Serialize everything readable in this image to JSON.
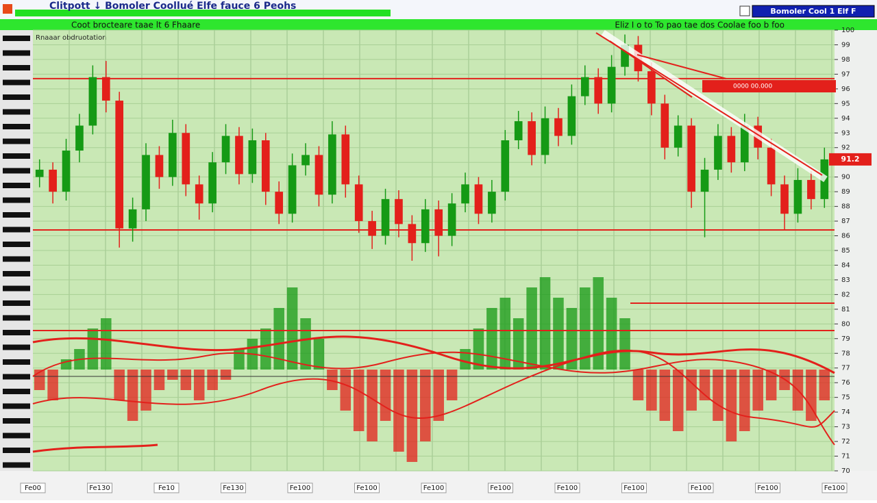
{
  "window": {
    "title": "Clitpott ↓ Bomoler Coollué Elfe fauce 6 Peohs",
    "header_right": "Bomoler Cool 1 Elf F",
    "toolbar_left": "Coot brocteare taae lt 6 Fhaare",
    "toolbar_right": "Eliz I o to To pao tae dos Coolae foo b foo",
    "panel_label": "Rnaaar obdruotation",
    "annotation": "0000 00.000"
  },
  "chart_data": {
    "type": "candlestick",
    "up_color": "#159a15",
    "down_color": "#e3201b",
    "x_labels": [
      "Fe00",
      "Fe130",
      "Fe10",
      "Fe130",
      "Fe100",
      "Fe100",
      "Fe100",
      "Fe100",
      "Fe100",
      "Fe100",
      "Fe100",
      "Fe100",
      "Fe100"
    ],
    "opens": [
      90.0,
      90.5,
      89.0,
      91.8,
      93.5,
      96.8,
      95.2,
      86.5,
      87.8,
      91.5,
      90.0,
      93.0,
      89.5,
      88.2,
      91.0,
      92.8,
      90.2,
      92.5,
      89.0,
      87.5,
      90.8,
      91.5,
      88.8,
      92.9,
      89.5,
      87.0,
      86.0,
      88.5,
      86.8,
      85.5,
      87.8,
      86.0,
      88.2,
      89.5,
      87.5,
      89.0,
      92.5,
      93.8,
      91.5,
      94.0,
      92.8,
      95.5,
      96.8,
      95.0,
      97.5,
      99.0,
      97.2,
      95.0,
      92.0,
      93.5,
      89.0,
      90.5,
      92.8,
      91.0,
      93.5,
      92.0,
      89.5,
      87.5,
      89.8,
      88.5
    ],
    "highs": [
      91.2,
      91.0,
      92.6,
      94.3,
      97.6,
      97.9,
      95.8,
      88.6,
      92.3,
      92.1,
      93.9,
      93.6,
      90.1,
      91.7,
      93.6,
      93.4,
      93.3,
      93.0,
      89.7,
      91.6,
      92.3,
      92.1,
      93.8,
      93.5,
      90.1,
      87.7,
      89.2,
      89.1,
      87.4,
      88.5,
      88.4,
      88.9,
      90.3,
      90.0,
      89.8,
      93.2,
      94.5,
      94.4,
      94.8,
      94.7,
      96.3,
      97.6,
      97.4,
      98.3,
      99.7,
      99.6,
      97.8,
      95.6,
      94.2,
      94.0,
      91.3,
      93.6,
      93.4,
      94.3,
      94.1,
      92.6,
      90.1,
      90.6,
      90.4,
      92.0
    ],
    "lows": [
      89.3,
      88.2,
      88.4,
      91.0,
      92.9,
      94.4,
      85.2,
      85.6,
      87.0,
      89.2,
      89.4,
      88.7,
      87.1,
      87.6,
      90.2,
      89.5,
      89.6,
      88.1,
      86.8,
      86.9,
      90.1,
      88.0,
      88.2,
      88.6,
      86.2,
      85.1,
      85.4,
      85.9,
      84.3,
      84.9,
      84.6,
      85.3,
      87.6,
      86.8,
      86.9,
      88.4,
      91.9,
      90.8,
      90.9,
      92.1,
      92.2,
      94.9,
      94.3,
      94.4,
      96.9,
      96.5,
      94.2,
      91.2,
      91.4,
      87.9,
      85.9,
      89.8,
      90.3,
      90.4,
      91.2,
      88.7,
      86.4,
      86.9,
      87.8,
      87.9
    ],
    "closes": [
      90.5,
      89.0,
      91.8,
      93.5,
      96.8,
      95.2,
      86.5,
      87.8,
      91.5,
      90.0,
      93.0,
      89.5,
      88.2,
      91.0,
      92.8,
      90.2,
      92.5,
      89.0,
      87.5,
      90.8,
      91.5,
      88.8,
      92.9,
      89.5,
      87.0,
      86.0,
      88.5,
      86.8,
      85.5,
      87.8,
      86.0,
      88.2,
      89.5,
      87.5,
      89.0,
      92.5,
      93.8,
      91.5,
      94.0,
      92.8,
      95.5,
      96.8,
      95.0,
      97.5,
      99.0,
      97.2,
      95.0,
      92.0,
      93.5,
      89.0,
      90.5,
      92.8,
      91.0,
      93.5,
      92.0,
      89.5,
      87.5,
      89.8,
      88.5,
      91.2
    ],
    "levels": [
      96.7,
      86.4
    ],
    "ylim": [
      70,
      100
    ],
    "yticks": [
      70,
      71,
      72,
      73,
      74,
      75,
      76,
      77,
      78,
      79,
      80,
      81,
      82,
      83,
      84,
      85,
      86,
      87,
      88,
      89,
      90,
      91,
      92,
      93,
      94,
      95,
      96,
      97,
      98,
      99,
      100
    ],
    "indicator": {
      "values": [
        -2,
        -3,
        1,
        2,
        4,
        5,
        -3,
        -5,
        -4,
        -2,
        -1,
        -2,
        -3,
        -2,
        -1,
        2,
        3,
        4,
        6,
        8,
        5,
        3,
        -2,
        -4,
        -6,
        -7,
        -5,
        -8,
        -9,
        -7,
        -5,
        -3,
        2,
        4,
        6,
        7,
        5,
        8,
        9,
        7,
        6,
        8,
        9,
        7,
        5,
        -3,
        -4,
        -5,
        -6,
        -4,
        -3,
        -5,
        -7,
        -6,
        -4,
        -3,
        -2,
        -4,
        -5,
        -3
      ],
      "ylim": [
        -10,
        10
      ]
    },
    "grid": true
  }
}
